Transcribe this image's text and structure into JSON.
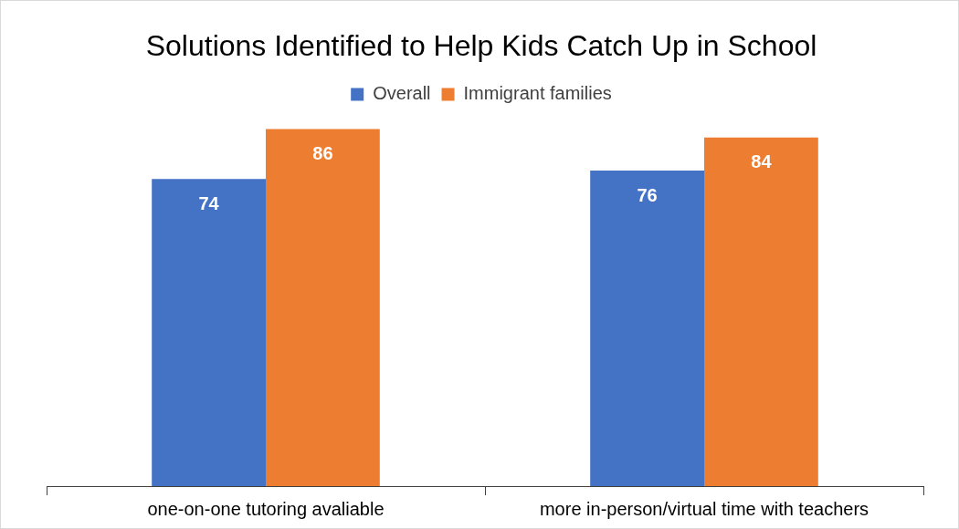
{
  "chart_data": {
    "type": "bar",
    "title": "Solutions Identified to Help Kids Catch Up in School",
    "categories": [
      "one-on-one tutoring avaliable",
      "more in-person/virtual time with teachers"
    ],
    "series": [
      {
        "name": "Overall",
        "color": "#4472c4",
        "values": [
          74,
          76
        ]
      },
      {
        "name": "Immigrant families",
        "color": "#ed7d31",
        "values": [
          86,
          84
        ]
      }
    ],
    "tick_labels": "x",
    "data_labels": true,
    "grid": false,
    "legend": "top"
  }
}
